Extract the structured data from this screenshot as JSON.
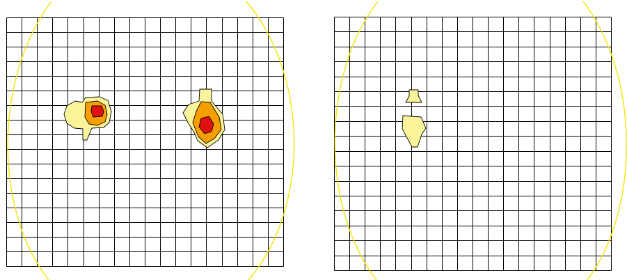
{
  "colors": {
    "background": "#ffffff",
    "grid": "#000000",
    "boundary_ellipse": "#f2e500",
    "halo": "#ffffff",
    "level_low": "#fbf39a",
    "level_mid": "#f5a000",
    "level_high": "#e01010"
  },
  "panels": [
    {
      "name": "left-panel",
      "grid": {
        "columns": 18,
        "rows": 17
      },
      "hotspots": [
        {
          "name": "hotspot-left-a",
          "levels": [
            "low",
            "mid",
            "high"
          ]
        },
        {
          "name": "hotspot-left-b",
          "levels": [
            "low",
            "mid",
            "high"
          ]
        }
      ]
    },
    {
      "name": "right-panel",
      "grid": {
        "columns": 18,
        "rows": 17
      },
      "hotspots": [
        {
          "name": "hotspot-right-upper",
          "levels": [
            "low"
          ]
        },
        {
          "name": "hotspot-right-lower",
          "levels": [
            "low"
          ]
        }
      ]
    }
  ]
}
